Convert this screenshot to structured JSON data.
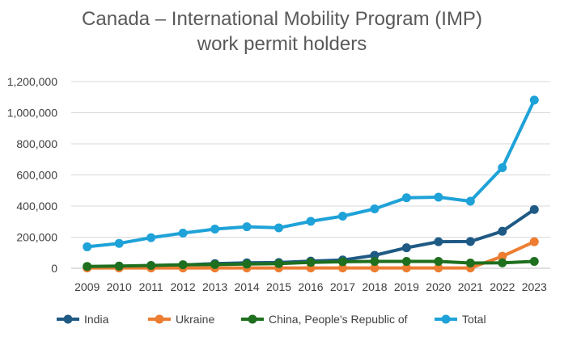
{
  "chart_data": {
    "type": "line",
    "title_lines": [
      "Canada – International Mobility Program (IMP)",
      "work permit holders"
    ],
    "xlabel": "",
    "ylabel": "",
    "categories": [
      "2009",
      "2010",
      "2011",
      "2012",
      "2013",
      "2014",
      "2015",
      "2016",
      "2017",
      "2018",
      "2019",
      "2020",
      "2021",
      "2022",
      "2023"
    ],
    "ylim": [
      0,
      1200000
    ],
    "y_ticks": [
      0,
      200000,
      400000,
      600000,
      800000,
      1000000,
      1200000
    ],
    "y_tick_labels": [
      "0",
      "200,000",
      "400,000",
      "600,000",
      "800,000",
      "1,000,000",
      "1,200,000"
    ],
    "grid": true,
    "legend_position": "bottom",
    "series": [
      {
        "name": "India",
        "color": "#1f5a85",
        "values": [
          10000,
          12000,
          17000,
          21000,
          30000,
          35000,
          37000,
          46000,
          53000,
          83000,
          132000,
          171000,
          172000,
          238000,
          378000
        ]
      },
      {
        "name": "Ukraine",
        "color": "#ed7d31",
        "values": [
          2000,
          2000,
          2000,
          2000,
          2000,
          2000,
          2000,
          2000,
          2000,
          2000,
          2000,
          2000,
          2000,
          77000,
          171000
        ]
      },
      {
        "name": "China, People's Republic of",
        "color": "#1e6f1e",
        "values": [
          12000,
          14000,
          18000,
          23000,
          24000,
          27000,
          30000,
          38000,
          42000,
          44000,
          44000,
          44000,
          34000,
          35000,
          44000
        ]
      },
      {
        "name": "Total",
        "color": "#1ea2d8",
        "values": [
          138000,
          160000,
          197000,
          226000,
          252000,
          267000,
          260000,
          302000,
          335000,
          382000,
          453000,
          457000,
          431000,
          647000,
          1081000
        ]
      }
    ]
  }
}
